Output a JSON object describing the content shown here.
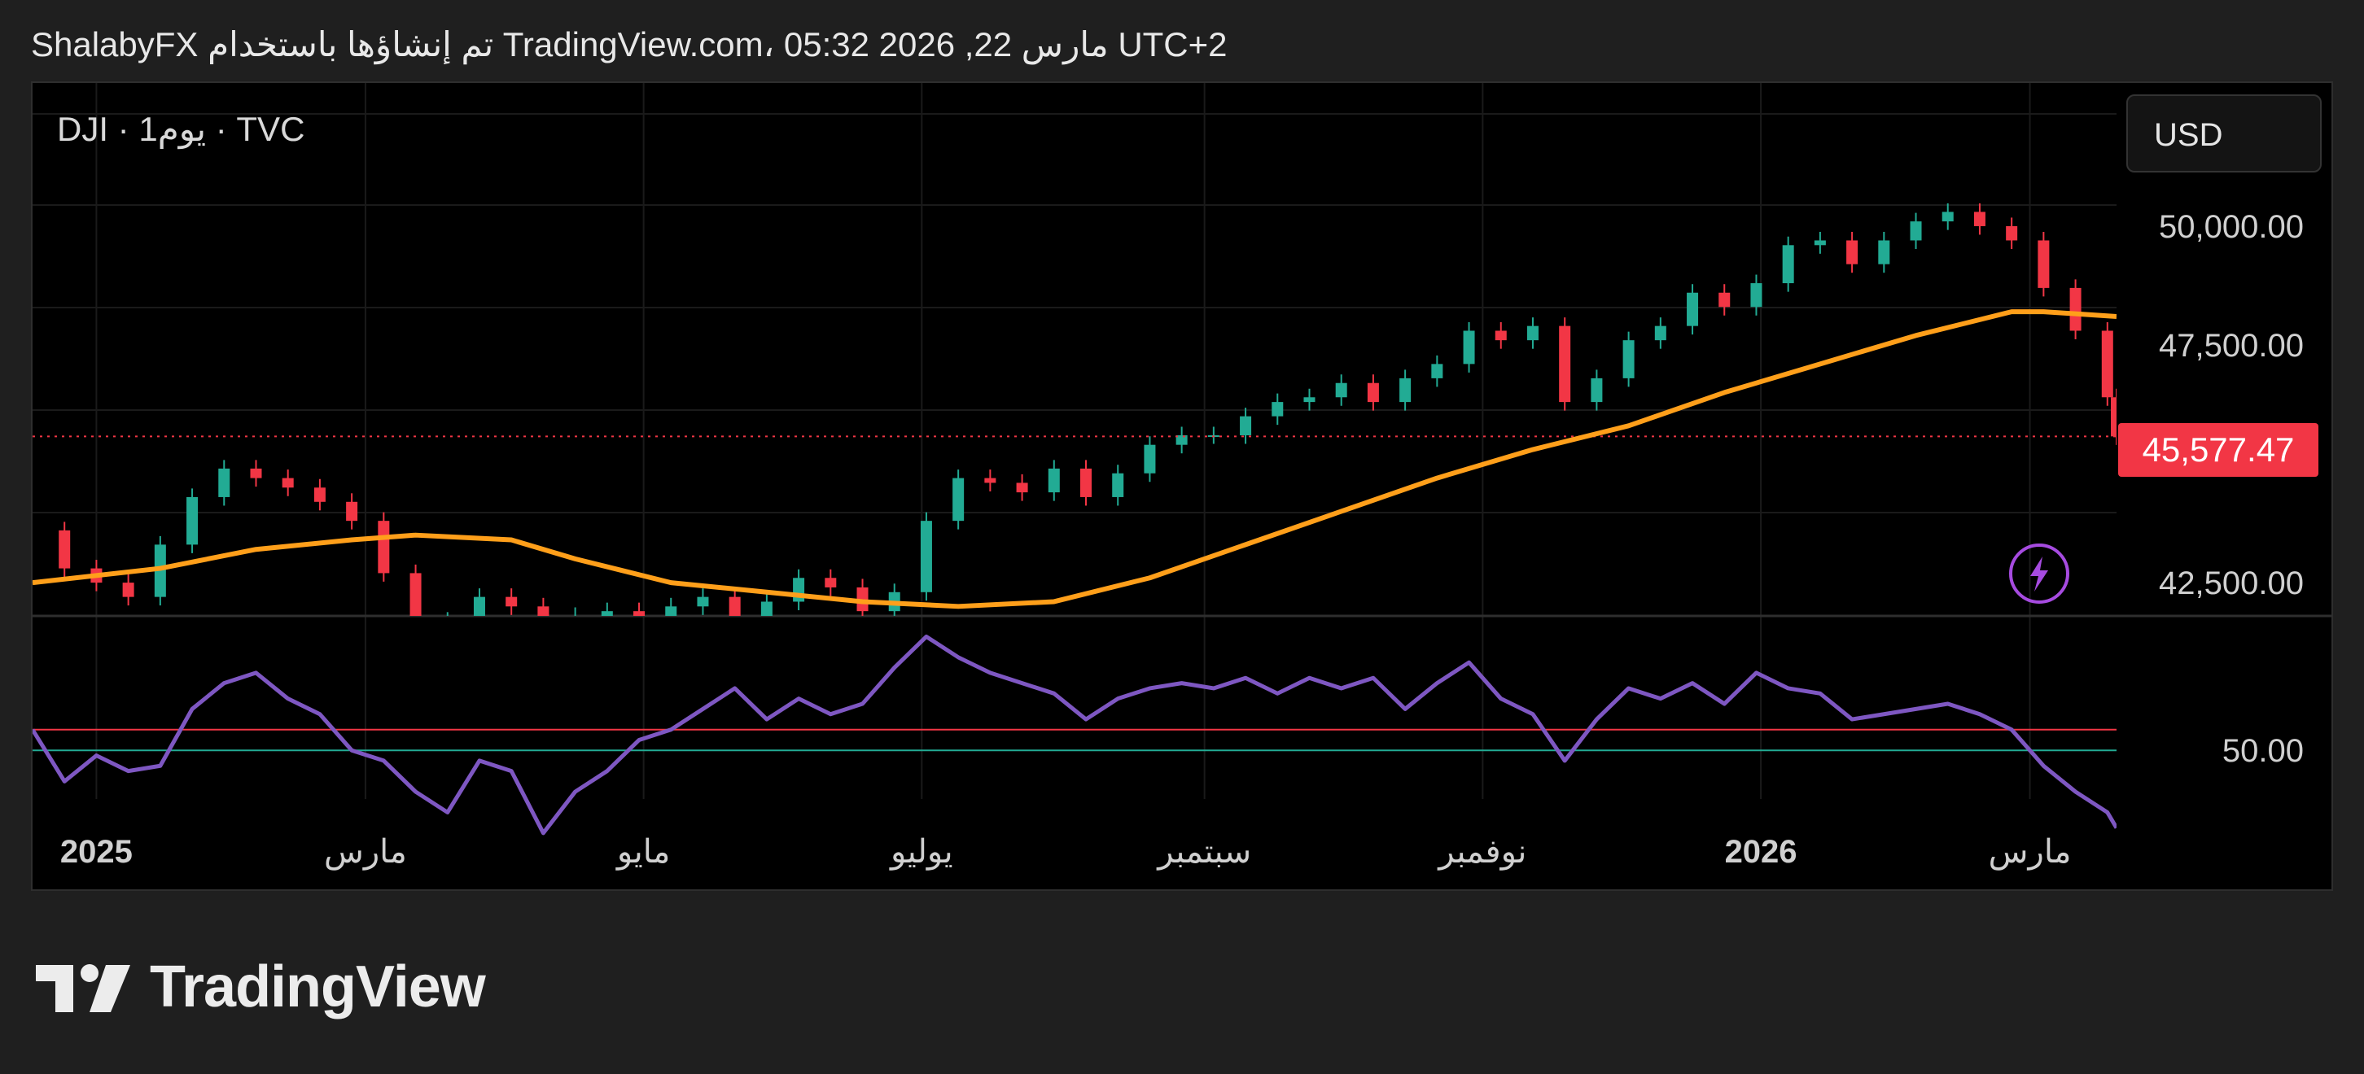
{
  "header": {
    "text": "ShalabyFX تم إنشاؤها باستخدام TradingView.com، مارس 22, 2026 05:32 UTC+2"
  },
  "symbol": {
    "label": "DJI · 1يوم · TVC"
  },
  "currency": {
    "label": "USD"
  },
  "last_price": {
    "label": "45,577.47"
  },
  "logo": {
    "text": "TradingView"
  },
  "colors": {
    "up": "#22ab94",
    "down": "#f23645",
    "ma": "#ff9f1a",
    "rsi": "#7e57c2",
    "rsi_upper": "#f23645",
    "rsi_lower": "#22ab94",
    "grid": "#1a1a1a",
    "bolt": "#a64be0"
  },
  "icons": {
    "bolt": "lightning-bolt-icon",
    "logo": "tradingview-logo-icon"
  },
  "chart_data": [
    {
      "type": "line",
      "panel": "price",
      "x_type": "date",
      "x_range": [
        "2024-12-18",
        "2026-03-20"
      ],
      "ylim": [
        41800,
        51300
      ],
      "y_ticks": [
        {
          "value": 42500,
          "label": "42,500.00"
        },
        {
          "value": 47500,
          "label": "47,500.00"
        },
        {
          "value": 50000,
          "label": "50,000.00"
        }
      ],
      "x_ticks": [
        {
          "date": "2025-01-01",
          "label": "2025",
          "bold": true
        },
        {
          "date": "2025-03-01",
          "label": "مارس",
          "bold": false
        },
        {
          "date": "2025-05-01",
          "label": "مايو",
          "bold": false
        },
        {
          "date": "2025-07-01",
          "label": "يوليو",
          "bold": false
        },
        {
          "date": "2025-09-01",
          "label": "سبتمبر",
          "bold": false
        },
        {
          "date": "2025-11-01",
          "label": "نوفمبر",
          "bold": false
        },
        {
          "date": "2026-01-01",
          "label": "2026",
          "bold": true
        },
        {
          "date": "2026-03-01",
          "label": "مارس",
          "bold": false
        }
      ],
      "last_price": 45577.47,
      "close": {
        "dates": [
          "2024-12-18",
          "2024-12-25",
          "2025-01-01",
          "2025-01-08",
          "2025-01-15",
          "2025-01-22",
          "2025-01-29",
          "2025-02-05",
          "2025-02-12",
          "2025-02-19",
          "2025-02-26",
          "2025-03-05",
          "2025-03-12",
          "2025-03-19",
          "2025-03-26",
          "2025-04-02",
          "2025-04-09",
          "2025-04-16",
          "2025-04-23",
          "2025-04-30",
          "2025-05-07",
          "2025-05-14",
          "2025-05-21",
          "2025-05-28",
          "2025-06-04",
          "2025-06-11",
          "2025-06-18",
          "2025-06-25",
          "2025-07-02",
          "2025-07-09",
          "2025-07-16",
          "2025-07-23",
          "2025-07-30",
          "2025-08-06",
          "2025-08-13",
          "2025-08-20",
          "2025-08-27",
          "2025-09-03",
          "2025-09-10",
          "2025-09-17",
          "2025-09-24",
          "2025-10-01",
          "2025-10-08",
          "2025-10-15",
          "2025-10-22",
          "2025-10-29",
          "2025-11-05",
          "2025-11-12",
          "2025-11-19",
          "2025-11-26",
          "2025-12-03",
          "2025-12-10",
          "2025-12-17",
          "2025-12-24",
          "2025-12-31",
          "2026-01-07",
          "2026-01-14",
          "2026-01-21",
          "2026-01-28",
          "2026-02-04",
          "2026-02-11",
          "2026-02-18",
          "2026-02-25",
          "2026-03-04",
          "2026-03-11",
          "2026-03-18",
          "2026-03-20"
        ],
        "values": [
          43600,
          42800,
          42500,
          42200,
          43300,
          44300,
          44900,
          44700,
          44500,
          44200,
          43800,
          42700,
          41600,
          41700,
          42200,
          42000,
          41400,
          41800,
          41900,
          41600,
          42000,
          42200,
          41700,
          42100,
          42600,
          42400,
          41900,
          42300,
          43800,
          44700,
          44600,
          44400,
          44900,
          44300,
          44800,
          45400,
          45600,
          45600,
          46000,
          46300,
          46400,
          46700,
          46300,
          46800,
          47100,
          47800,
          47600,
          47900,
          46300,
          46800,
          47600,
          47900,
          48600,
          48300,
          48800,
          49600,
          49700,
          49200,
          49700,
          50100,
          50300,
          50000,
          49700,
          48700,
          47800,
          46400,
          45577
        ]
      },
      "moving_average": {
        "dates": [
          "2024-12-18",
          "2025-01-15",
          "2025-02-05",
          "2025-02-26",
          "2025-03-12",
          "2025-04-02",
          "2025-04-16",
          "2025-05-07",
          "2025-05-28",
          "2025-06-18",
          "2025-07-09",
          "2025-07-30",
          "2025-08-20",
          "2025-09-10",
          "2025-10-01",
          "2025-10-22",
          "2025-11-12",
          "2025-12-03",
          "2025-12-24",
          "2026-01-14",
          "2026-02-04",
          "2026-02-25",
          "2026-03-04",
          "2026-03-20"
        ],
        "values": [
          42500,
          42800,
          43200,
          43400,
          43500,
          43400,
          43000,
          42500,
          42300,
          42100,
          42000,
          42100,
          42600,
          43300,
          44000,
          44700,
          45300,
          45800,
          46500,
          47100,
          47700,
          48200,
          48200,
          48100
        ]
      }
    },
    {
      "type": "line",
      "panel": "rsi",
      "x_type": "date",
      "ylim": [
        28,
        76
      ],
      "y_ticks": [
        {
          "value": 50,
          "label": "50.00"
        }
      ],
      "upper_band": 54,
      "lower_band": 50,
      "rsi": {
        "dates": [
          "2024-12-18",
          "2024-12-25",
          "2025-01-01",
          "2025-01-08",
          "2025-01-15",
          "2025-01-22",
          "2025-01-29",
          "2025-02-05",
          "2025-02-12",
          "2025-02-19",
          "2025-02-26",
          "2025-03-05",
          "2025-03-12",
          "2025-03-19",
          "2025-03-26",
          "2025-04-02",
          "2025-04-09",
          "2025-04-16",
          "2025-04-23",
          "2025-04-30",
          "2025-05-07",
          "2025-05-14",
          "2025-05-21",
          "2025-05-28",
          "2025-06-04",
          "2025-06-11",
          "2025-06-18",
          "2025-06-25",
          "2025-07-02",
          "2025-07-09",
          "2025-07-16",
          "2025-07-23",
          "2025-07-30",
          "2025-08-06",
          "2025-08-13",
          "2025-08-20",
          "2025-08-27",
          "2025-09-03",
          "2025-09-10",
          "2025-09-17",
          "2025-09-24",
          "2025-10-01",
          "2025-10-08",
          "2025-10-15",
          "2025-10-22",
          "2025-10-29",
          "2025-11-05",
          "2025-11-12",
          "2025-11-19",
          "2025-11-26",
          "2025-12-03",
          "2025-12-10",
          "2025-12-17",
          "2025-12-24",
          "2025-12-31",
          "2026-01-07",
          "2026-01-14",
          "2026-01-21",
          "2026-01-28",
          "2026-02-04",
          "2026-02-11",
          "2026-02-18",
          "2026-02-25",
          "2026-03-04",
          "2026-03-11",
          "2026-03-18",
          "2026-03-20"
        ],
        "values": [
          54,
          44,
          49,
          46,
          47,
          58,
          63,
          65,
          60,
          57,
          50,
          48,
          42,
          38,
          48,
          46,
          34,
          42,
          46,
          52,
          54,
          58,
          62,
          56,
          60,
          57,
          59,
          66,
          72,
          68,
          65,
          63,
          61,
          56,
          60,
          62,
          63,
          62,
          64,
          61,
          64,
          62,
          64,
          58,
          63,
          67,
          60,
          57,
          48,
          56,
          62,
          60,
          63,
          59,
          65,
          62,
          61,
          56,
          57,
          58,
          59,
          57,
          54,
          47,
          42,
          38,
          35
        ]
      }
    }
  ]
}
